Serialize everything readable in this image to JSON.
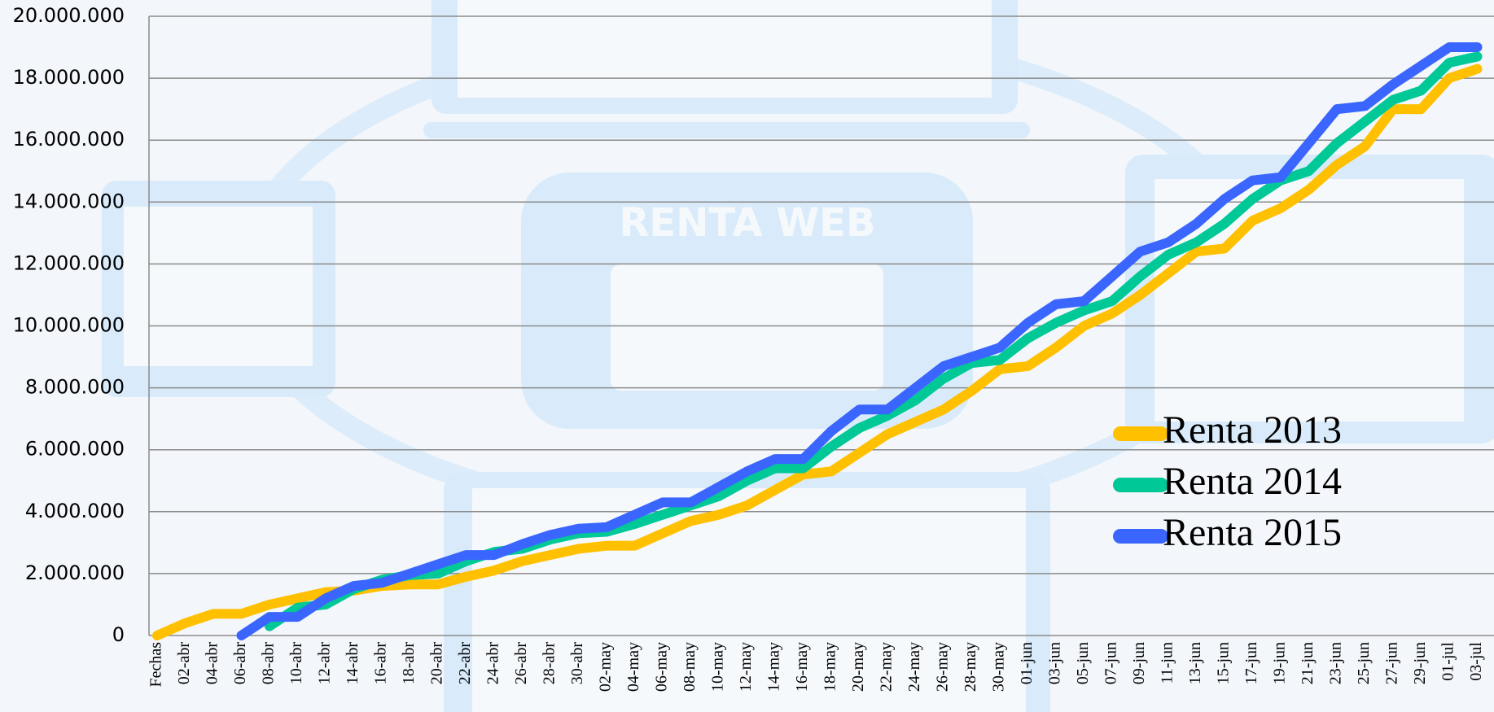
{
  "chart_data": {
    "type": "line",
    "categories": [
      "Fechas",
      "02-abr",
      "04-abr",
      "06-abr",
      "08-abr",
      "10-abr",
      "12-abr",
      "14-abr",
      "16-abr",
      "18-abr",
      "20-abr",
      "22-abr",
      "24-abr",
      "26-abr",
      "28-abr",
      "30-abr",
      "02-may",
      "04-may",
      "06-may",
      "08-may",
      "10-may",
      "12-may",
      "14-may",
      "16-may",
      "18-may",
      "20-may",
      "22-may",
      "24-may",
      "26-may",
      "28-may",
      "30-may",
      "01-jun",
      "03-jun",
      "05-jun",
      "07-jun",
      "09-jun",
      "11-jun",
      "13-jun",
      "15-jun",
      "17-jun",
      "19-jun",
      "21-jun",
      "23-jun",
      "25-jun",
      "27-jun",
      "29-jun",
      "01-jul",
      "03-jul"
    ],
    "series": [
      {
        "name": "Renta 2013",
        "color": "#ffc000",
        "values": [
          0,
          400000,
          700000,
          700000,
          1000000,
          1200000,
          1400000,
          1450000,
          1600000,
          1650000,
          1650000,
          1900000,
          2100000,
          2400000,
          2600000,
          2800000,
          2900000,
          2900000,
          3300000,
          3700000,
          3900000,
          4200000,
          4700000,
          5200000,
          5300000,
          5900000,
          6500000,
          6900000,
          7300000,
          7900000,
          8600000,
          8700000,
          9300000,
          10000000,
          10400000,
          11000000,
          11700000,
          12400000,
          12500000,
          13400000,
          13800000,
          14400000,
          15200000,
          15800000,
          17000000,
          17000000,
          18000000,
          18300000
        ]
      },
      {
        "name": "Renta 2014",
        "color": "#00c896",
        "values": [
          null,
          null,
          null,
          null,
          300000,
          900000,
          1000000,
          1500000,
          1800000,
          1950000,
          2000000,
          2400000,
          2700000,
          2800000,
          3100000,
          3300000,
          3350000,
          3600000,
          3900000,
          4200000,
          4500000,
          5000000,
          5400000,
          5400000,
          6100000,
          6700000,
          7100000,
          7600000,
          8300000,
          8800000,
          8900000,
          9600000,
          10100000,
          10500000,
          10800000,
          11600000,
          12300000,
          12700000,
          13300000,
          14100000,
          14700000,
          15000000,
          15900000,
          16600000,
          17300000,
          17600000,
          18500000,
          18700000
        ]
      },
      {
        "name": "Renta 2015",
        "color": "#3a66ff",
        "values": [
          null,
          null,
          null,
          0,
          600000,
          600000,
          1200000,
          1600000,
          1700000,
          2000000,
          2300000,
          2600000,
          2600000,
          2950000,
          3250000,
          3450000,
          3500000,
          3900000,
          4300000,
          4300000,
          4800000,
          5300000,
          5700000,
          5700000,
          6600000,
          7300000,
          7300000,
          8000000,
          8700000,
          9000000,
          9300000,
          10100000,
          10700000,
          10800000,
          11600000,
          12400000,
          12700000,
          13300000,
          14100000,
          14700000,
          14800000,
          15900000,
          17000000,
          17100000,
          17800000,
          18400000,
          19000000,
          19000000
        ]
      }
    ],
    "ylim": [
      0,
      20000000
    ],
    "yticks": [
      {
        "value": 0,
        "label": "0"
      },
      {
        "value": 2000000,
        "label": "2.000.000"
      },
      {
        "value": 4000000,
        "label": "4.000.000"
      },
      {
        "value": 6000000,
        "label": "6.000.000"
      },
      {
        "value": 8000000,
        "label": "8.000.000"
      },
      {
        "value": 10000000,
        "label": "10.000.000"
      },
      {
        "value": 12000000,
        "label": "12.000.000"
      },
      {
        "value": 14000000,
        "label": "14.000.000"
      },
      {
        "value": 16000000,
        "label": "16.000.000"
      },
      {
        "value": 18000000,
        "label": "18.000.000"
      },
      {
        "value": 20000000,
        "label": "20.000.000"
      }
    ],
    "grid": true,
    "legend": "right"
  }
}
